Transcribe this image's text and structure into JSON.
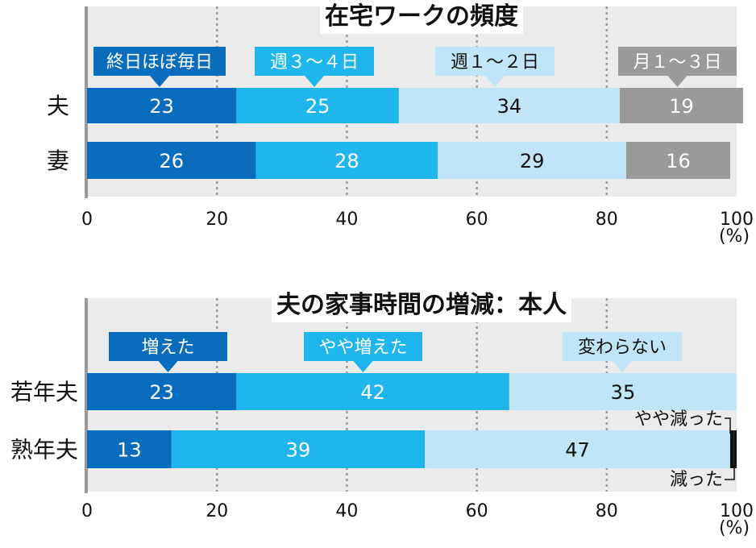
{
  "x_unit": "(%)",
  "colors": {
    "dark_blue": "#0a6cbc",
    "mid_blue": "#1fb6ee",
    "light_blue": "#bfe5f7",
    "gray": "#9a9a9a",
    "panel": "#ebebeb"
  },
  "chart_data": [
    {
      "type": "bar",
      "stacked": true,
      "orientation": "horizontal",
      "title": "在宅ワークの頻度",
      "categories": [
        "夫",
        "妻"
      ],
      "series": [
        {
          "name": "終日ほぼ毎日",
          "values": [
            23,
            26
          ],
          "color": "#0a6cbc"
        },
        {
          "name": "週３～４日",
          "values": [
            25,
            28
          ],
          "color": "#1fb6ee"
        },
        {
          "name": "週１～２日",
          "values": [
            34,
            29
          ],
          "color": "#bfe5f7"
        },
        {
          "name": "月１～３日",
          "values": [
            19,
            16
          ],
          "color": "#9a9a9a"
        }
      ],
      "xlim": [
        0,
        100
      ],
      "xticks": [
        "0",
        "20",
        "40",
        "60",
        "80",
        "100"
      ],
      "grid": true
    },
    {
      "type": "bar",
      "stacked": true,
      "orientation": "horizontal",
      "title": "夫の家事時間の増減：本人",
      "categories": [
        "若年夫",
        "熟年夫"
      ],
      "series": [
        {
          "name": "増えた",
          "values": [
            23,
            13
          ],
          "color": "#0a6cbc"
        },
        {
          "name": "やや増えた",
          "values": [
            42,
            39
          ],
          "color": "#1fb6ee"
        },
        {
          "name": "変わらない",
          "values": [
            35,
            47
          ],
          "color": "#bfe5f7"
        },
        {
          "name": "やや減った",
          "values": [
            0,
            0.6
          ],
          "color": "#111111"
        },
        {
          "name": "減った",
          "values": [
            0,
            0.4
          ],
          "color": "#111111"
        }
      ],
      "xlim": [
        0,
        100
      ],
      "xticks": [
        "0",
        "20",
        "40",
        "60",
        "80",
        "100"
      ],
      "grid": true
    }
  ]
}
